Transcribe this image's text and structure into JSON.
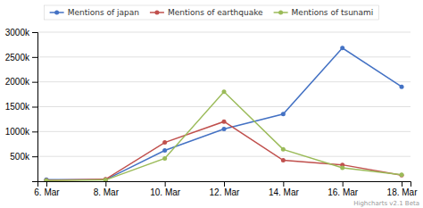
{
  "chart_data": {
    "type": "line",
    "categories": [
      "6. Mar",
      "8. Mar",
      "10. Mar",
      "12. Mar",
      "14. Mar",
      "16. Mar",
      "18. Mar"
    ],
    "series": [
      {
        "name": "Mentions of japan",
        "color": "#4472c4",
        "values": [
          30000,
          30000,
          620000,
          1050000,
          1350000,
          2680000,
          1900000
        ]
      },
      {
        "name": "Mentions of earthquake",
        "color": "#c0504d",
        "values": [
          20000,
          40000,
          780000,
          1200000,
          420000,
          330000,
          120000
        ]
      },
      {
        "name": "Mentions of tsunami",
        "color": "#9bbb59",
        "values": [
          15000,
          25000,
          460000,
          1800000,
          640000,
          270000,
          130000
        ]
      }
    ],
    "ylim": [
      0,
      3000000
    ],
    "yticks": [
      {
        "value": 500000,
        "label": "500k"
      },
      {
        "value": 1000000,
        "label": "1000k"
      },
      {
        "value": 1500000,
        "label": "1500k"
      },
      {
        "value": 2000000,
        "label": "2000k"
      },
      {
        "value": 2500000,
        "label": "2500k"
      },
      {
        "value": 3000000,
        "label": "3000k"
      }
    ],
    "grid": true,
    "legend": "top",
    "marker": "circle",
    "annotation": "Highcharts v2.1 Beta"
  }
}
